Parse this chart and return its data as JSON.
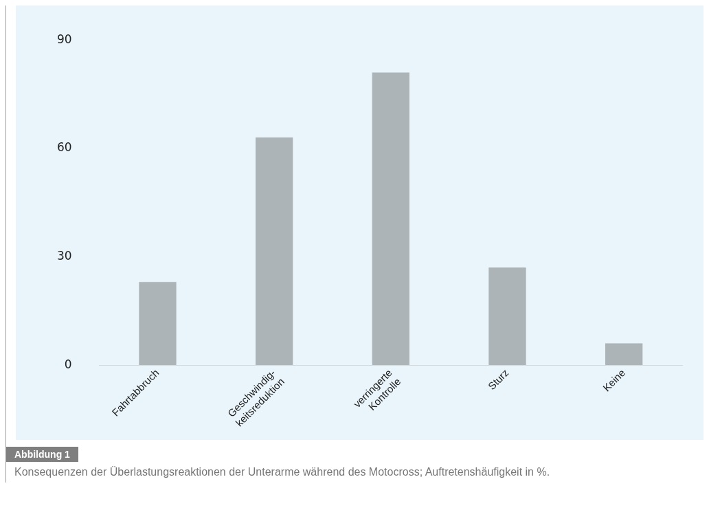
{
  "chart_data": {
    "type": "bar",
    "categories": [
      "Fahrtabbruch",
      "Geschwindig-\nkeitsreduktion",
      "verringerte\nKontrolle",
      "Sturz",
      "Keine"
    ],
    "values": [
      23,
      63,
      81,
      27,
      6
    ],
    "color": "#adb4b7",
    "ylim": [
      0,
      90
    ],
    "yticks": [
      0,
      30,
      60,
      90
    ],
    "grid": false,
    "legend": false,
    "annotations": [
      "Abbildung 1",
      "Konsequenzen der Überlastungsreaktionen der Unterarme während des Motocross; Auftretenshäufigkeit in %."
    ]
  }
}
